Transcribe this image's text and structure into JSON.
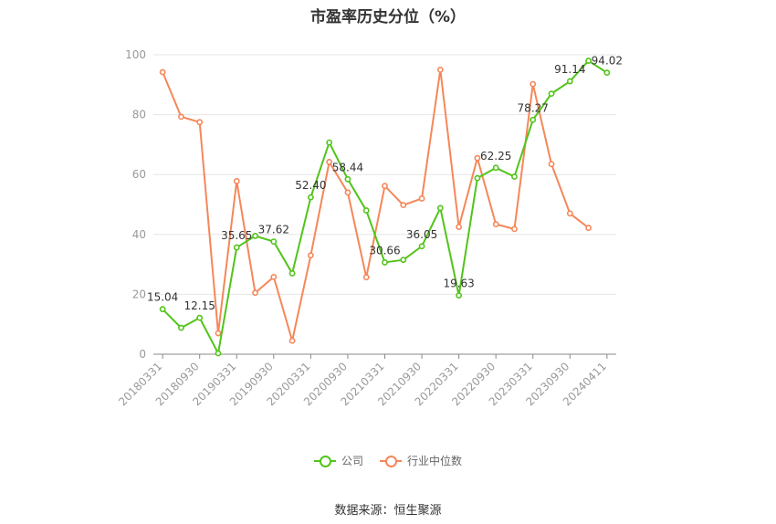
{
  "chart_data": {
    "type": "line",
    "title": "市盈率历史分位（%）",
    "ylim": [
      0,
      100
    ],
    "yticks": [
      0,
      20,
      40,
      60,
      80,
      100
    ],
    "x_tick_labels": [
      "20180331",
      "20180930",
      "20190331",
      "20190930",
      "20200331",
      "20200930",
      "20210331",
      "20210930",
      "20220331",
      "20220930",
      "20230331",
      "20230930",
      "20240411"
    ],
    "x": [
      "20180331",
      "20180630",
      "20180930",
      "20181231",
      "20190331",
      "20190630",
      "20190930",
      "20191231",
      "20200331",
      "20200630",
      "20200930",
      "20201231",
      "20210331",
      "20210630",
      "20210930",
      "20211231",
      "20220331",
      "20220630",
      "20220930",
      "20221231",
      "20230331",
      "20230630",
      "20230930",
      "20231231",
      "20240411"
    ],
    "grid": true,
    "legend_position": "bottom",
    "series": [
      {
        "name": "公司",
        "color": "#52c41a",
        "values": [
          15.04,
          8.8,
          12.15,
          0.3,
          35.65,
          39.5,
          37.62,
          27.0,
          52.4,
          70.7,
          58.44,
          48.0,
          30.66,
          31.5,
          36.05,
          48.8,
          19.63,
          58.8,
          62.25,
          59.3,
          78.27,
          87.0,
          91.14,
          98.0,
          94.02
        ],
        "labels": [
          "15.04",
          "",
          "12.15",
          "",
          "35.65",
          "",
          "37.62",
          "",
          "52.40",
          "",
          "58.44",
          "",
          "30.66",
          "",
          "36.05",
          "",
          "19.63",
          "",
          "62.25",
          "",
          "78.27",
          "",
          "91.14",
          "",
          "94.02"
        ]
      },
      {
        "name": "行业中位数",
        "color": "#f5875a",
        "values": [
          94.2,
          79.3,
          77.5,
          7.0,
          57.8,
          20.5,
          25.8,
          4.5,
          33.0,
          64.2,
          54.0,
          25.7,
          56.2,
          49.8,
          52.0,
          95.0,
          42.5,
          65.5,
          43.4,
          41.8,
          90.2,
          63.5,
          47.0,
          42.2,
          null
        ]
      }
    ]
  },
  "source_text": "数据来源：恒生聚源"
}
